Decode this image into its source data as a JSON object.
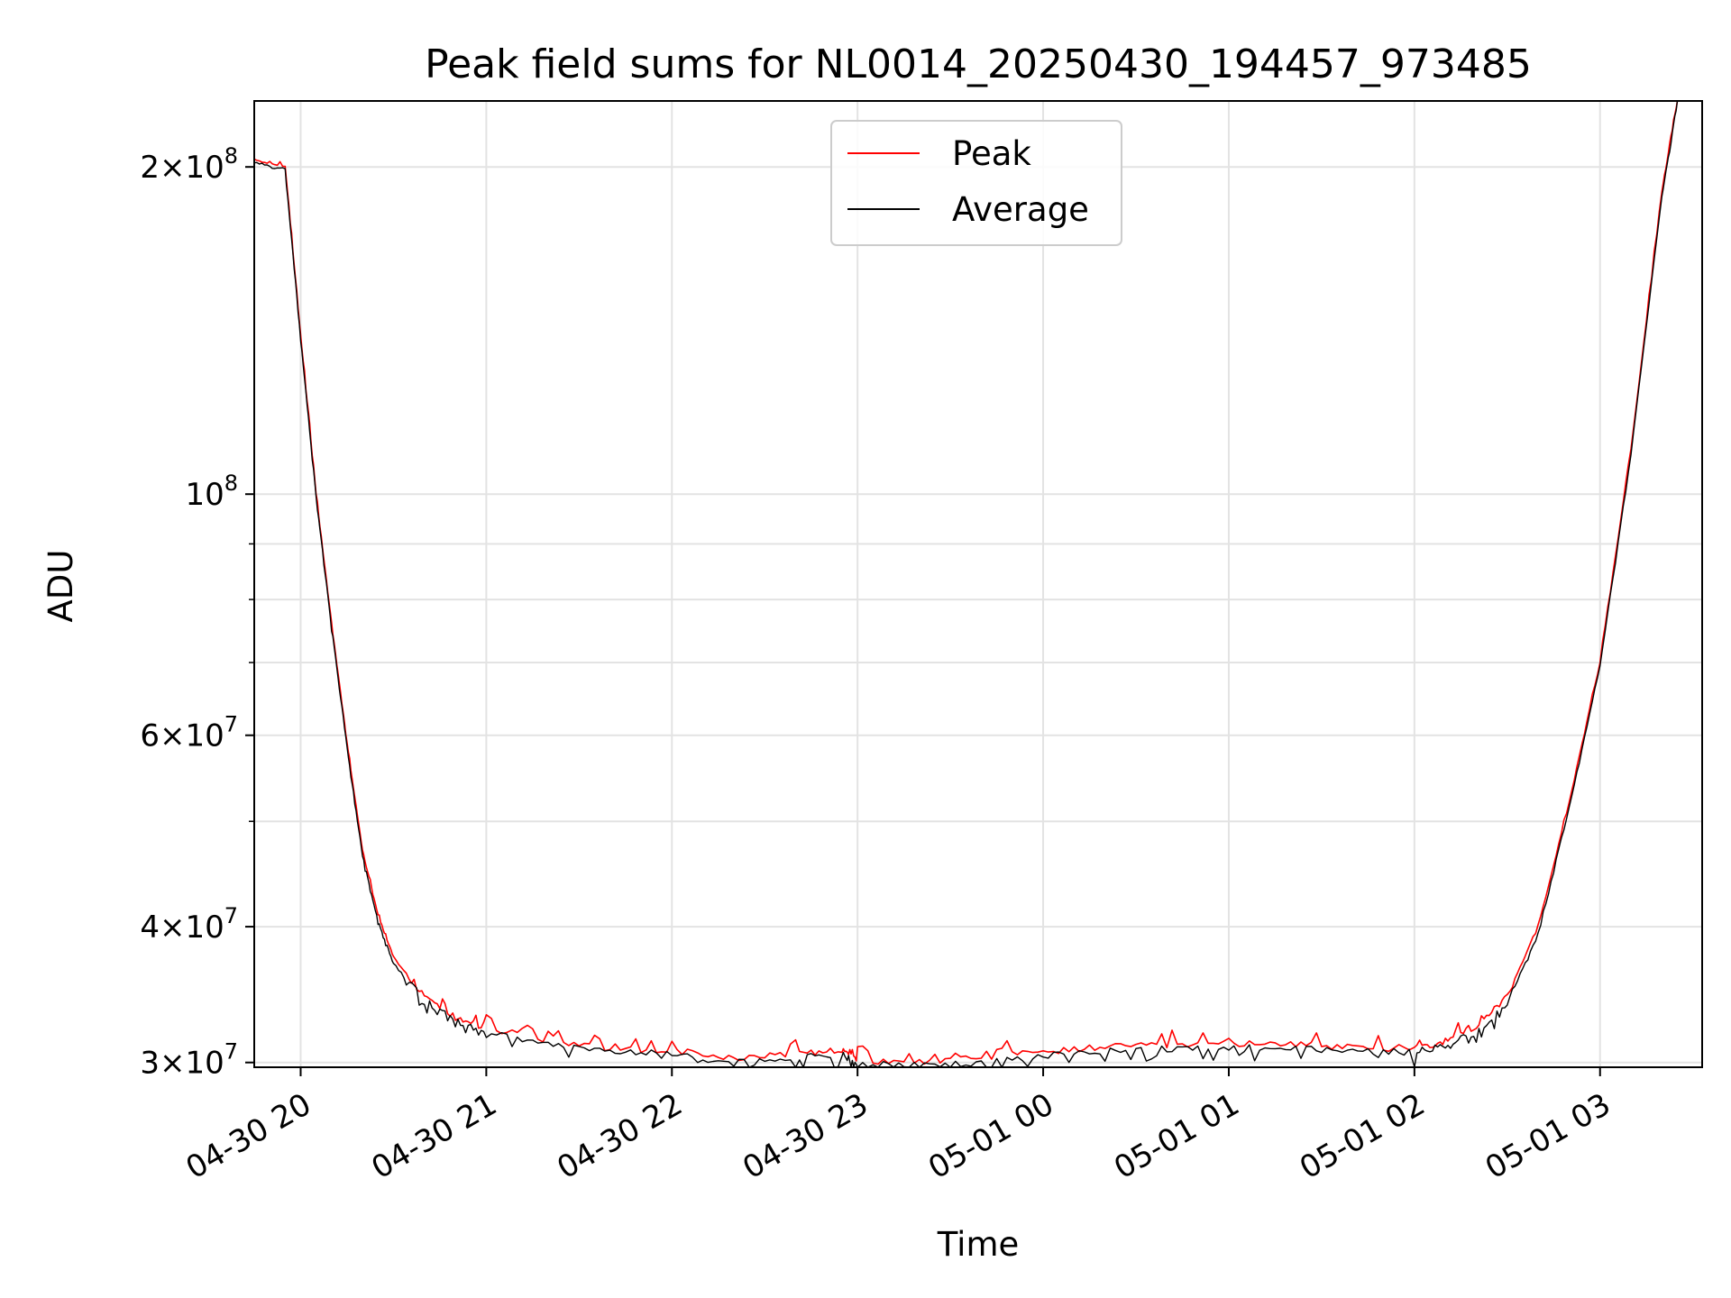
{
  "chart_data": {
    "type": "line",
    "title": "Peak field sums for NL0014_20250430_194457_973485",
    "xlabel": "Time",
    "ylabel": "ADU",
    "y_scale": "log",
    "ylim": [
      29700000,
      230000000
    ],
    "xlim": [
      "2025-04-30 19:45",
      "2025-05-01 03:33"
    ],
    "grid": true,
    "legend_position": "top-center",
    "x_ticks": [
      {
        "t": "2025-04-30 20:00",
        "label": "04-30 20"
      },
      {
        "t": "2025-04-30 21:00",
        "label": "04-30 21"
      },
      {
        "t": "2025-04-30 22:00",
        "label": "04-30 22"
      },
      {
        "t": "2025-04-30 23:00",
        "label": "04-30 23"
      },
      {
        "t": "2025-05-01 00:00",
        "label": "05-01 00"
      },
      {
        "t": "2025-05-01 01:00",
        "label": "05-01 01"
      },
      {
        "t": "2025-05-01 02:00",
        "label": "05-01 02"
      },
      {
        "t": "2025-05-01 03:00",
        "label": "05-01 03"
      }
    ],
    "y_ticks": [
      {
        "value": 30000000,
        "mant": "3",
        "exp": "7"
      },
      {
        "value": 40000000,
        "mant": "4",
        "exp": "7"
      },
      {
        "value": 60000000,
        "mant": "6",
        "exp": "7"
      },
      {
        "value": 100000000,
        "mant": "",
        "exp": "8"
      },
      {
        "value": 200000000,
        "mant": "2",
        "exp": "8"
      }
    ],
    "y_minor_ticks": [
      50000000,
      70000000,
      80000000,
      90000000
    ],
    "series": [
      {
        "name": "Peak",
        "color": "#ff0000",
        "points": [
          [
            "2025-04-30 19:45",
            203000000
          ],
          [
            "2025-04-30 19:55",
            200000000
          ],
          [
            "2025-04-30 20:00",
            140000000
          ],
          [
            "2025-04-30 20:05",
            100000000
          ],
          [
            "2025-04-30 20:10",
            76000000
          ],
          [
            "2025-04-30 20:15",
            59000000
          ],
          [
            "2025-04-30 20:20",
            47000000
          ],
          [
            "2025-04-30 20:25",
            41000000
          ],
          [
            "2025-04-30 20:30",
            37500000
          ],
          [
            "2025-04-30 20:40",
            34500000
          ],
          [
            "2025-04-30 20:50",
            33000000
          ],
          [
            "2025-04-30 21:00",
            32300000
          ],
          [
            "2025-04-30 21:20",
            31400000
          ],
          [
            "2025-04-30 21:40",
            30900000
          ],
          [
            "2025-04-30 22:00",
            30800000
          ],
          [
            "2025-04-30 22:20",
            30200000
          ],
          [
            "2025-04-30 22:40",
            30600000
          ],
          [
            "2025-04-30 22:55",
            30800000
          ],
          [
            "2025-04-30 23:00",
            30100000
          ],
          [
            "2025-04-30 23:20",
            30000000
          ],
          [
            "2025-04-30 23:40",
            30300000
          ],
          [
            "2025-05-01 00:00",
            30700000
          ],
          [
            "2025-05-01 00:20",
            31000000
          ],
          [
            "2025-05-01 00:40",
            31100000
          ],
          [
            "2025-05-01 01:00",
            31200000
          ],
          [
            "2025-05-01 01:20",
            31200000
          ],
          [
            "2025-05-01 01:40",
            30900000
          ],
          [
            "2025-05-01 02:00",
            30900000
          ],
          [
            "2025-05-01 02:10",
            31400000
          ],
          [
            "2025-05-01 02:20",
            32400000
          ],
          [
            "2025-05-01 02:30",
            34500000
          ],
          [
            "2025-05-01 02:40",
            40000000
          ],
          [
            "2025-05-01 02:50",
            52000000
          ],
          [
            "2025-05-01 03:00",
            70000000
          ],
          [
            "2025-05-01 03:10",
            110000000
          ],
          [
            "2025-05-01 03:20",
            190000000
          ],
          [
            "2025-05-01 03:25",
            230000000
          ]
        ]
      },
      {
        "name": "Average",
        "color": "#000000",
        "points": [
          [
            "2025-04-30 19:45",
            202000000
          ],
          [
            "2025-04-30 19:55",
            199000000
          ],
          [
            "2025-04-30 20:00",
            139000000
          ],
          [
            "2025-04-30 20:05",
            99500000
          ],
          [
            "2025-04-30 20:10",
            75500000
          ],
          [
            "2025-04-30 20:15",
            58500000
          ],
          [
            "2025-04-30 20:20",
            46500000
          ],
          [
            "2025-04-30 20:25",
            40500000
          ],
          [
            "2025-04-30 20:30",
            37000000
          ],
          [
            "2025-04-30 20:40",
            34200000
          ],
          [
            "2025-04-30 20:50",
            32800000
          ],
          [
            "2025-04-30 21:00",
            32000000
          ],
          [
            "2025-04-30 21:20",
            31200000
          ],
          [
            "2025-04-30 21:40",
            30800000
          ],
          [
            "2025-04-30 22:00",
            30500000
          ],
          [
            "2025-04-30 22:20",
            30000000
          ],
          [
            "2025-04-30 22:40",
            30300000
          ],
          [
            "2025-04-30 22:55",
            30500000
          ],
          [
            "2025-04-30 23:00",
            29900000
          ],
          [
            "2025-04-30 23:20",
            29800000
          ],
          [
            "2025-04-30 23:40",
            30000000
          ],
          [
            "2025-05-01 00:00",
            30400000
          ],
          [
            "2025-05-01 00:20",
            30700000
          ],
          [
            "2025-05-01 00:40",
            30900000
          ],
          [
            "2025-05-01 01:00",
            31000000
          ],
          [
            "2025-05-01 01:20",
            30900000
          ],
          [
            "2025-05-01 01:40",
            30700000
          ],
          [
            "2025-05-01 02:00",
            30700000
          ],
          [
            "2025-05-01 02:10",
            31100000
          ],
          [
            "2025-05-01 02:20",
            32000000
          ],
          [
            "2025-05-01 02:30",
            34000000
          ],
          [
            "2025-05-01 02:40",
            39500000
          ],
          [
            "2025-05-01 02:50",
            51500000
          ],
          [
            "2025-05-01 03:00",
            69500000
          ],
          [
            "2025-05-01 03:10",
            109000000
          ],
          [
            "2025-05-01 03:20",
            188000000
          ],
          [
            "2025-05-01 03:25",
            230000000
          ]
        ]
      }
    ]
  }
}
